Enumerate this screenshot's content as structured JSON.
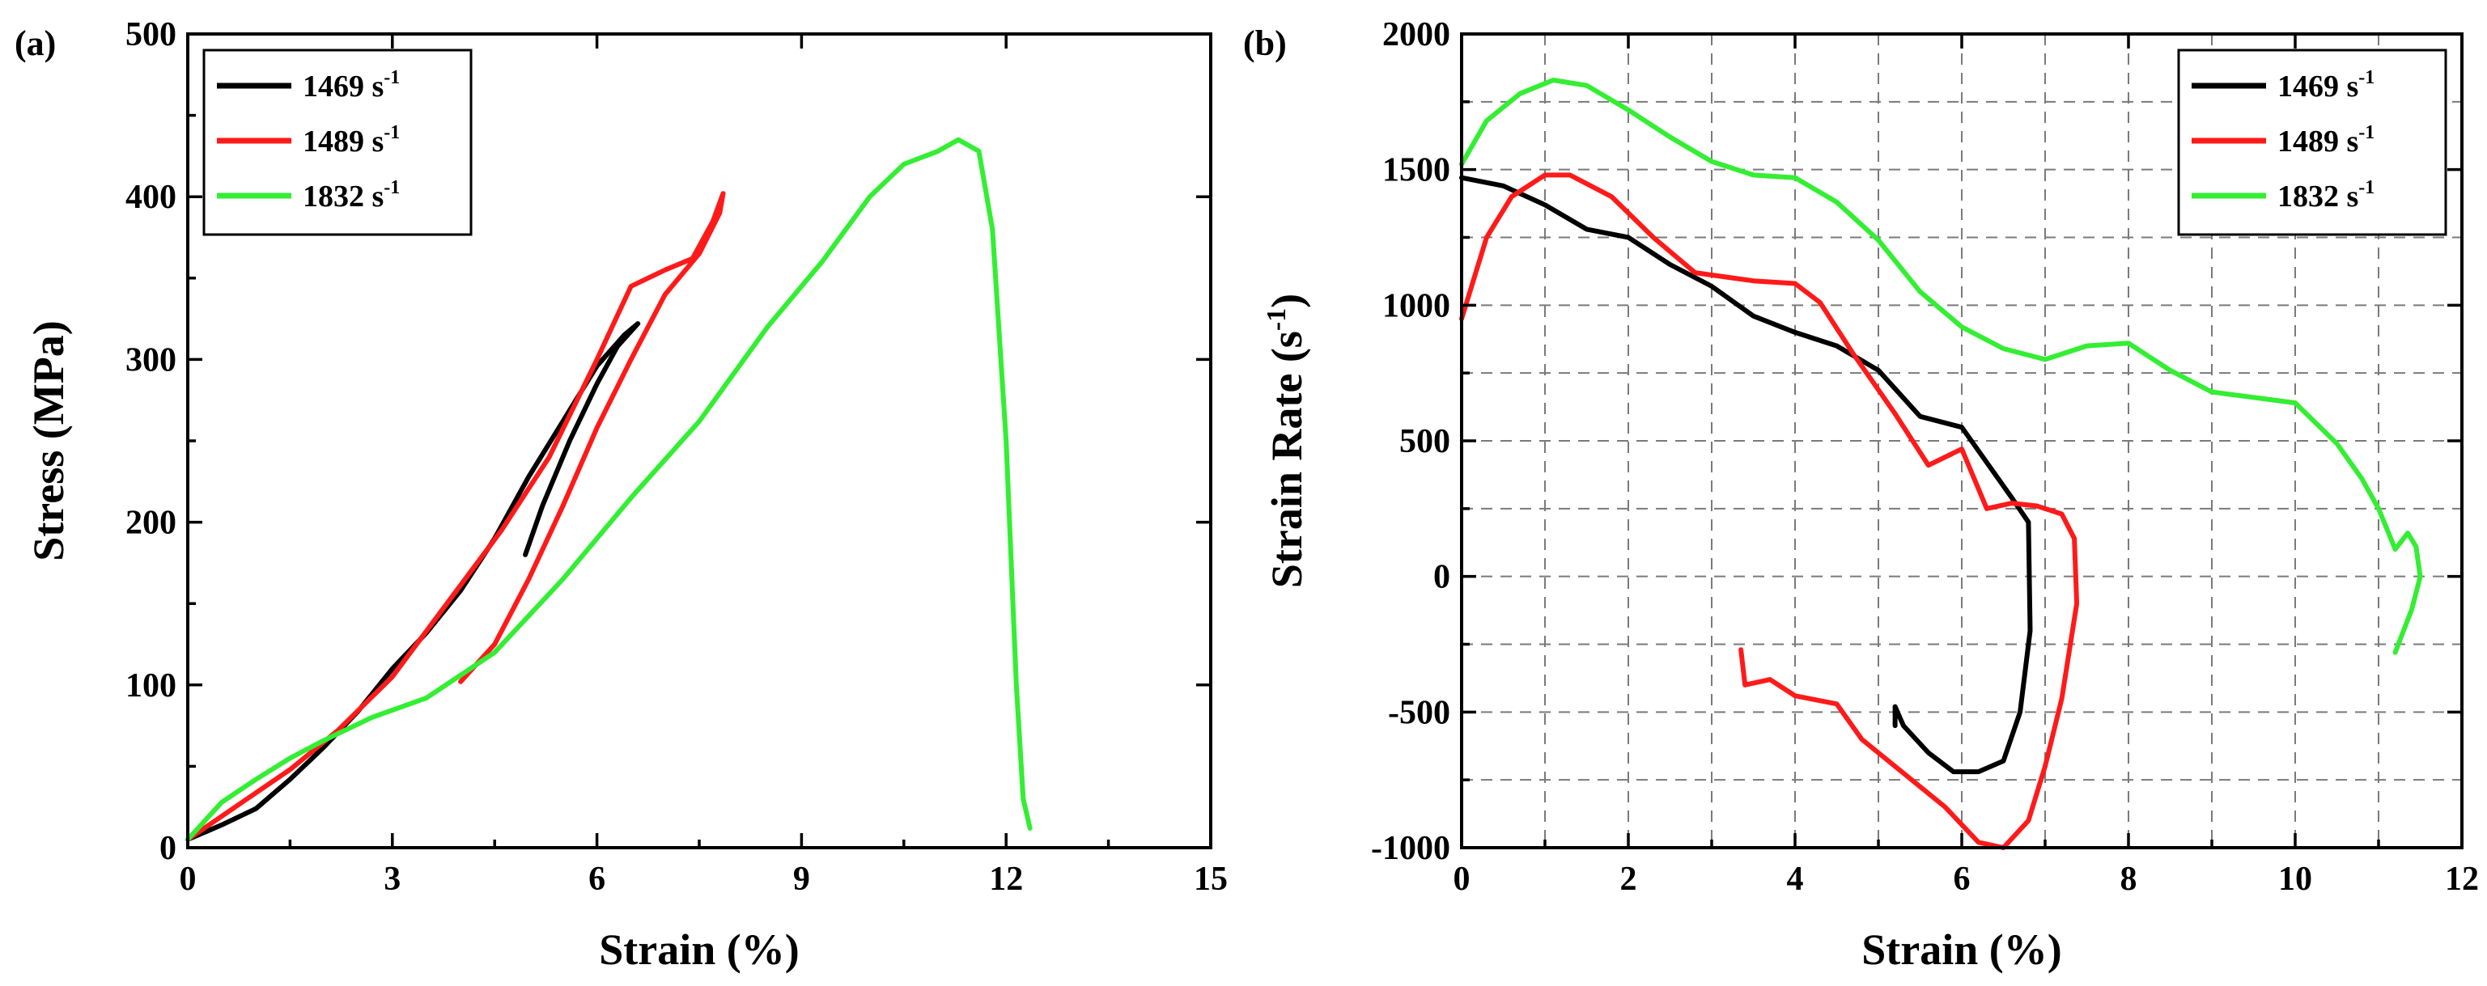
{
  "colors": {
    "black": "#000000",
    "red": "#ff1a1a",
    "green": "#33ee33"
  },
  "chart_data": [
    {
      "type": "line",
      "panel_label": "(a)",
      "xlabel": "Strain (%)",
      "ylabel": "Stress (MPa)",
      "xlim": [
        0,
        15
      ],
      "ylim": [
        0,
        500
      ],
      "xticks": [
        0,
        3,
        6,
        9,
        12,
        15
      ],
      "yticks": [
        0,
        100,
        200,
        300,
        400,
        500
      ],
      "grid": false,
      "legend_position": "top-left",
      "series": [
        {
          "name": "1469",
          "unit_base": "s",
          "unit_exp": "-1",
          "color": "#000000",
          "x": [
            0,
            0.5,
            1.0,
            1.5,
            2.0,
            2.5,
            3.0,
            3.5,
            4.0,
            4.5,
            5.0,
            5.5,
            6.0,
            6.4,
            6.6,
            6.3,
            6.0,
            5.6,
            5.2,
            4.95
          ],
          "y": [
            5,
            14,
            24,
            42,
            62,
            84,
            110,
            132,
            158,
            190,
            228,
            262,
            296,
            315,
            322,
            308,
            285,
            250,
            210,
            180
          ]
        },
        {
          "name": "1489",
          "unit_base": "s",
          "unit_exp": "-1",
          "color": "#ff1a1a",
          "x": [
            0,
            0.8,
            1.5,
            2.2,
            3.0,
            3.8,
            4.6,
            5.3,
            6.0,
            6.5,
            7.0,
            7.4,
            7.7,
            7.85,
            7.8,
            7.5,
            7.0,
            6.5,
            6.0,
            5.5,
            5.0,
            4.5,
            4.0
          ],
          "y": [
            5,
            28,
            48,
            72,
            105,
            150,
            195,
            240,
            300,
            345,
            355,
            362,
            385,
            402,
            390,
            365,
            340,
            300,
            258,
            210,
            165,
            125,
            102
          ]
        },
        {
          "name": "1832",
          "unit_base": "s",
          "unit_exp": "-1",
          "color": "#33ee33",
          "x": [
            0,
            0.5,
            1.0,
            1.5,
            2.0,
            2.7,
            3.5,
            4.5,
            5.5,
            6.5,
            7.5,
            8.5,
            9.3,
            10.0,
            10.5,
            11.0,
            11.3,
            11.6,
            11.8,
            12.0,
            12.15,
            12.25,
            12.35
          ],
          "y": [
            5,
            28,
            42,
            55,
            66,
            80,
            92,
            120,
            165,
            215,
            262,
            320,
            360,
            400,
            420,
            428,
            435,
            428,
            380,
            250,
            100,
            30,
            12
          ]
        }
      ]
    },
    {
      "type": "line",
      "panel_label": "(b)",
      "xlabel": "Strain (%)",
      "ylabel_base": "Strain Rate (s",
      "ylabel_exp": "-1",
      "ylabel_close": ")",
      "xlim": [
        0,
        12
      ],
      "ylim": [
        -1000,
        2000
      ],
      "xticks": [
        0,
        2,
        4,
        6,
        8,
        10,
        12
      ],
      "yticks": [
        -1000,
        -500,
        0,
        500,
        1000,
        1500,
        2000
      ],
      "grid": true,
      "legend_position": "top-right",
      "series": [
        {
          "name": "1469",
          "unit_base": "s",
          "unit_exp": "-1",
          "color": "#000000",
          "x": [
            0,
            0.5,
            1.0,
            1.5,
            2.0,
            2.5,
            3.0,
            3.5,
            4.0,
            4.5,
            5.0,
            5.5,
            6.0,
            6.3,
            6.6,
            6.8,
            6.82,
            6.7,
            6.5,
            6.2,
            5.9,
            5.6,
            5.3,
            5.2,
            5.2
          ],
          "y": [
            1470,
            1440,
            1370,
            1280,
            1250,
            1150,
            1070,
            960,
            900,
            850,
            760,
            590,
            550,
            420,
            290,
            200,
            -200,
            -500,
            -680,
            -720,
            -720,
            -650,
            -550,
            -480,
            -550
          ]
        },
        {
          "name": "1489",
          "unit_base": "s",
          "unit_exp": "-1",
          "color": "#ff1a1a",
          "x": [
            0,
            0.3,
            0.6,
            1.0,
            1.3,
            1.8,
            2.3,
            2.8,
            3.5,
            4.0,
            4.3,
            4.7,
            5.2,
            5.6,
            6.0,
            6.3,
            6.6,
            6.9,
            7.2,
            7.35,
            7.38,
            7.2,
            7.0,
            6.8,
            6.5,
            6.2,
            5.8,
            5.2,
            4.8,
            4.5,
            4.0,
            3.7,
            3.4,
            3.35
          ],
          "y": [
            950,
            1250,
            1400,
            1480,
            1480,
            1400,
            1250,
            1120,
            1090,
            1080,
            1010,
            820,
            600,
            410,
            470,
            250,
            270,
            260,
            230,
            140,
            -100,
            -450,
            -700,
            -900,
            -1000,
            -980,
            -850,
            -700,
            -600,
            -470,
            -440,
            -380,
            -400,
            -270
          ]
        },
        {
          "name": "1832",
          "unit_base": "s",
          "unit_exp": "-1",
          "color": "#33ee33",
          "x": [
            0,
            0.3,
            0.7,
            1.1,
            1.5,
            2.0,
            2.5,
            3.0,
            3.5,
            4.0,
            4.5,
            5.0,
            5.5,
            6.0,
            6.5,
            7.0,
            7.5,
            8.0,
            8.5,
            9.0,
            9.5,
            10.0,
            10.5,
            10.8,
            11.0,
            11.2,
            11.35,
            11.45,
            11.5,
            11.4,
            11.3,
            11.2
          ],
          "y": [
            1520,
            1680,
            1780,
            1830,
            1810,
            1720,
            1620,
            1530,
            1480,
            1470,
            1380,
            1240,
            1050,
            920,
            840,
            800,
            850,
            860,
            760,
            680,
            660,
            640,
            490,
            360,
            250,
            100,
            160,
            110,
            0,
            -120,
            -200,
            -280
          ]
        }
      ]
    }
  ]
}
